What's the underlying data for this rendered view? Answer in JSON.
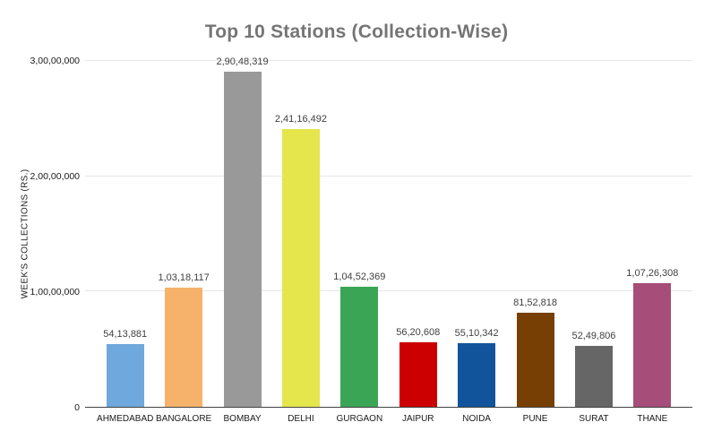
{
  "chart_data": {
    "type": "bar",
    "title": "Top 10 Stations (Collection-Wise)",
    "ylabel": "WEEK'S COLLECTIONS (RS.)",
    "xlabel": "",
    "categories": [
      "AHMEDABAD",
      "BANGALORE",
      "BOMBAY",
      "DELHI",
      "GURGAON",
      "JAIPUR",
      "NOIDA",
      "PUNE",
      "SURAT",
      "THANE"
    ],
    "values": [
      5413881,
      10318117,
      29048319,
      24116492,
      10452369,
      5620608,
      5510342,
      8152818,
      5249806,
      10726308
    ],
    "value_labels": [
      "54,13,881",
      "1,03,18,117",
      "2,90,48,319",
      "2,41,16,492",
      "1,04,52,369",
      "56,20,608",
      "55,10,342",
      "81,52,818",
      "52,49,806",
      "1,07,26,308"
    ],
    "bar_colors": [
      "#6fa8dc",
      "#f6b26b",
      "#999999",
      "#e5e64b",
      "#3aa655",
      "#cc0000",
      "#11549b",
      "#783f04",
      "#666666",
      "#a64d79"
    ],
    "ylim": [
      0,
      30000000
    ],
    "yticks": [
      {
        "value": 0,
        "label": "0"
      },
      {
        "value": 10000000,
        "label": "1,00,00,000"
      },
      {
        "value": 20000000,
        "label": "2,00,00,000"
      },
      {
        "value": 30000000,
        "label": "3,00,00,000"
      }
    ],
    "grid": true,
    "legend": "none"
  },
  "colors": {
    "title_text": "#757575",
    "axis_text": "#1a1a1a",
    "value_label_text": "#404040",
    "gridline": "#e6e6e6",
    "axis_line": "#424242",
    "background": "#ffffff"
  }
}
